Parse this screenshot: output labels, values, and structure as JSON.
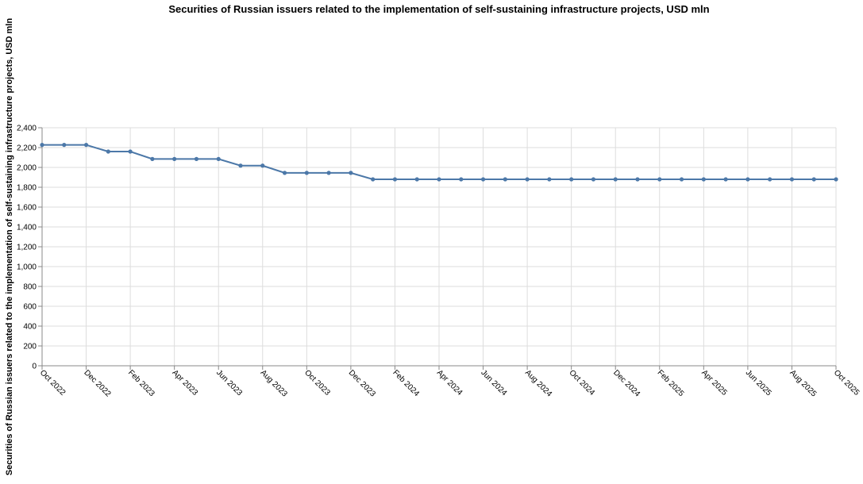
{
  "chart_data": {
    "type": "line",
    "title": "Securities of Russian issuers related to the implementation of self-sustaining infrastructure projects, USD mln",
    "xlabel": "",
    "ylabel": "Securities of Russian issuers related to the implementation of self-sustaining infrastructure projects, USD mln",
    "x": [
      "2022-10",
      "2022-11",
      "2022-12",
      "2023-01",
      "2023-02",
      "2023-03",
      "2023-04",
      "2023-05",
      "2023-06",
      "2023-07",
      "2023-08",
      "2023-09",
      "2023-10",
      "2023-11",
      "2023-12",
      "2024-01",
      "2024-02",
      "2024-03",
      "2024-04",
      "2024-05",
      "2024-06",
      "2024-07",
      "2024-08",
      "2024-09",
      "2024-10",
      "2024-11",
      "2024-12",
      "2025-01",
      "2025-02",
      "2025-03",
      "2025-04",
      "2025-05",
      "2025-06",
      "2025-07",
      "2025-08",
      "2025-09",
      "2025-10"
    ],
    "series": [
      {
        "values": [
          2227,
          2227,
          2227,
          2160,
          2160,
          2085,
          2085,
          2085,
          2085,
          2018,
          2018,
          1945,
          1945,
          1945,
          1945,
          1880,
          1880,
          1880,
          1880,
          1880,
          1880,
          1880,
          1880,
          1880,
          1880,
          1880,
          1880,
          1880,
          1880,
          1880,
          1880,
          1880,
          1880,
          1880,
          1880,
          1880,
          1880
        ]
      }
    ],
    "x_tick_labels": [
      "Oct 2022",
      "Dec 2022",
      "Feb 2023",
      "Apr 2023",
      "Jun 2023",
      "Aug 2023",
      "Oct 2023",
      "Dec 2023",
      "Feb 2024",
      "Apr 2024",
      "Jun 2024",
      "Aug 2024",
      "Oct 2024",
      "Dec 2024",
      "Feb 2025",
      "Apr 2025",
      "Jun 2025",
      "Aug 2025",
      "Oct 2025"
    ],
    "y_ticks": [
      0,
      200,
      400,
      600,
      800,
      1000,
      1200,
      1400,
      1600,
      1800,
      2000,
      2200,
      2400
    ],
    "y_tick_labels": [
      "0",
      "200",
      "400",
      "600",
      "800",
      "1,000",
      "1,200",
      "1,400",
      "1,600",
      "1,800",
      "2,000",
      "2,200",
      "2,400"
    ],
    "ylim": [
      0,
      2400
    ],
    "grid": true,
    "legend": "none",
    "colors": {
      "line": "#4c78a8",
      "grid": "#dddddd",
      "axis": "#888888"
    }
  }
}
